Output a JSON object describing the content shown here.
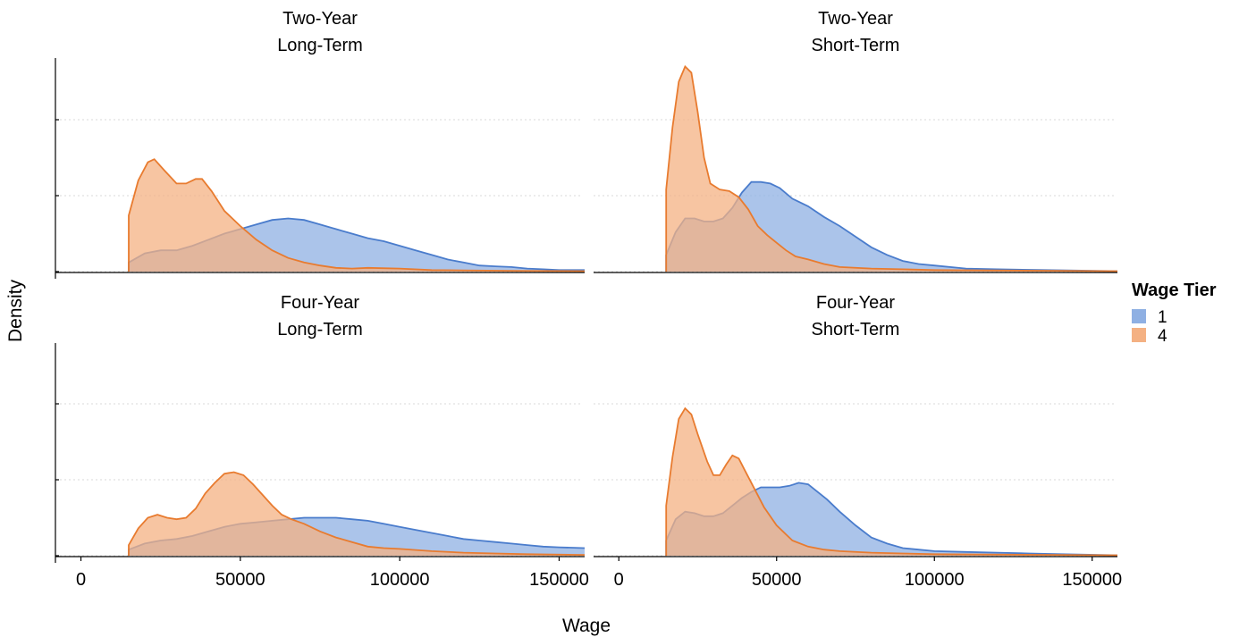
{
  "chart_data": {
    "type": "area",
    "subtype": "density",
    "xlabel": "Wage",
    "ylabel": "Density",
    "xlim": [
      -8000,
      158000
    ],
    "x_ticks": [
      0,
      50000,
      100000,
      150000
    ],
    "x_tick_labels": [
      "0",
      "50000",
      "100000",
      "150000"
    ],
    "y_tick_labels_shown": false,
    "y_gridlines": 3,
    "grid": "horizontal-dotted",
    "legend": {
      "title": "Wage Tier",
      "position": "right",
      "entries": [
        {
          "label": "1",
          "fill": "#8fb0e3",
          "stroke": "#4a7ccc"
        },
        {
          "label": "4",
          "fill": "#f4b183",
          "stroke": "#e87b2f"
        }
      ]
    },
    "panels": [
      {
        "title_line1": "Two-Year",
        "title_line2": "Long-Term",
        "ylim": [
          0,
          1.4
        ],
        "series": [
          {
            "name": "1",
            "points": [
              [
                15000,
                0.06
              ],
              [
                20000,
                0.12
              ],
              [
                25000,
                0.14
              ],
              [
                30000,
                0.14
              ],
              [
                35000,
                0.17
              ],
              [
                40000,
                0.21
              ],
              [
                45000,
                0.25
              ],
              [
                50000,
                0.28
              ],
              [
                55000,
                0.31
              ],
              [
                60000,
                0.34
              ],
              [
                65000,
                0.35
              ],
              [
                70000,
                0.34
              ],
              [
                75000,
                0.31
              ],
              [
                80000,
                0.28
              ],
              [
                85000,
                0.25
              ],
              [
                90000,
                0.22
              ],
              [
                95000,
                0.2
              ],
              [
                100000,
                0.17
              ],
              [
                105000,
                0.14
              ],
              [
                110000,
                0.11
              ],
              [
                115000,
                0.08
              ],
              [
                120000,
                0.06
              ],
              [
                125000,
                0.04
              ],
              [
                130000,
                0.035
              ],
              [
                135000,
                0.03
              ],
              [
                140000,
                0.02
              ],
              [
                145000,
                0.015
              ],
              [
                150000,
                0.01
              ],
              [
                158000,
                0.01
              ]
            ]
          },
          {
            "name": "4",
            "points": [
              [
                15000,
                0.37
              ],
              [
                18000,
                0.6
              ],
              [
                21000,
                0.72
              ],
              [
                23000,
                0.74
              ],
              [
                26000,
                0.67
              ],
              [
                30000,
                0.58
              ],
              [
                33000,
                0.58
              ],
              [
                36000,
                0.61
              ],
              [
                38000,
                0.61
              ],
              [
                41000,
                0.53
              ],
              [
                45000,
                0.4
              ],
              [
                50000,
                0.3
              ],
              [
                55000,
                0.21
              ],
              [
                60000,
                0.14
              ],
              [
                65000,
                0.09
              ],
              [
                70000,
                0.06
              ],
              [
                75000,
                0.04
              ],
              [
                80000,
                0.025
              ],
              [
                85000,
                0.02
              ],
              [
                90000,
                0.025
              ],
              [
                100000,
                0.02
              ],
              [
                110000,
                0.01
              ],
              [
                120000,
                0.008
              ],
              [
                135000,
                0.005
              ],
              [
                158000,
                0.003
              ]
            ]
          }
        ]
      },
      {
        "title_line1": "Two-Year",
        "title_line2": "Short-Term",
        "ylim": [
          0,
          1.4
        ],
        "series": [
          {
            "name": "1",
            "points": [
              [
                15000,
                0.11
              ],
              [
                18000,
                0.26
              ],
              [
                21000,
                0.35
              ],
              [
                24000,
                0.35
              ],
              [
                27000,
                0.33
              ],
              [
                30000,
                0.33
              ],
              [
                33000,
                0.35
              ],
              [
                36000,
                0.42
              ],
              [
                39000,
                0.52
              ],
              [
                42000,
                0.59
              ],
              [
                45000,
                0.59
              ],
              [
                48000,
                0.58
              ],
              [
                51000,
                0.55
              ],
              [
                55000,
                0.48
              ],
              [
                60000,
                0.43
              ],
              [
                65000,
                0.36
              ],
              [
                70000,
                0.3
              ],
              [
                75000,
                0.23
              ],
              [
                80000,
                0.16
              ],
              [
                85000,
                0.11
              ],
              [
                90000,
                0.07
              ],
              [
                95000,
                0.05
              ],
              [
                100000,
                0.04
              ],
              [
                110000,
                0.02
              ],
              [
                120000,
                0.015
              ],
              [
                135000,
                0.01
              ],
              [
                158000,
                0.003
              ]
            ]
          },
          {
            "name": "4",
            "points": [
              [
                15000,
                0.54
              ],
              [
                17000,
                0.95
              ],
              [
                19000,
                1.25
              ],
              [
                21000,
                1.35
              ],
              [
                23000,
                1.31
              ],
              [
                25000,
                1.05
              ],
              [
                27000,
                0.75
              ],
              [
                29000,
                0.58
              ],
              [
                32000,
                0.54
              ],
              [
                35000,
                0.53
              ],
              [
                38000,
                0.49
              ],
              [
                41000,
                0.41
              ],
              [
                44000,
                0.3
              ],
              [
                47000,
                0.24
              ],
              [
                50000,
                0.19
              ],
              [
                53000,
                0.14
              ],
              [
                56000,
                0.1
              ],
              [
                60000,
                0.08
              ],
              [
                65000,
                0.05
              ],
              [
                70000,
                0.03
              ],
              [
                80000,
                0.02
              ],
              [
                90000,
                0.015
              ],
              [
                100000,
                0.01
              ],
              [
                158000,
                0.003
              ]
            ]
          }
        ]
      },
      {
        "title_line1": "Four-Year",
        "title_line2": "Long-Term",
        "ylim": [
          0,
          1.4
        ],
        "series": [
          {
            "name": "1",
            "points": [
              [
                15000,
                0.04
              ],
              [
                20000,
                0.08
              ],
              [
                25000,
                0.1
              ],
              [
                30000,
                0.11
              ],
              [
                35000,
                0.13
              ],
              [
                40000,
                0.16
              ],
              [
                45000,
                0.19
              ],
              [
                50000,
                0.21
              ],
              [
                55000,
                0.22
              ],
              [
                60000,
                0.23
              ],
              [
                65000,
                0.24
              ],
              [
                70000,
                0.25
              ],
              [
                75000,
                0.25
              ],
              [
                80000,
                0.25
              ],
              [
                85000,
                0.24
              ],
              [
                90000,
                0.23
              ],
              [
                95000,
                0.21
              ],
              [
                100000,
                0.19
              ],
              [
                105000,
                0.17
              ],
              [
                110000,
                0.15
              ],
              [
                115000,
                0.13
              ],
              [
                120000,
                0.11
              ],
              [
                125000,
                0.1
              ],
              [
                130000,
                0.09
              ],
              [
                135000,
                0.08
              ],
              [
                140000,
                0.07
              ],
              [
                145000,
                0.06
              ],
              [
                150000,
                0.055
              ],
              [
                158000,
                0.05
              ]
            ]
          },
          {
            "name": "4",
            "points": [
              [
                15000,
                0.07
              ],
              [
                18000,
                0.18
              ],
              [
                21000,
                0.25
              ],
              [
                24000,
                0.27
              ],
              [
                27000,
                0.25
              ],
              [
                30000,
                0.24
              ],
              [
                33000,
                0.25
              ],
              [
                36000,
                0.31
              ],
              [
                39000,
                0.41
              ],
              [
                42000,
                0.48
              ],
              [
                45000,
                0.54
              ],
              [
                48000,
                0.55
              ],
              [
                51000,
                0.53
              ],
              [
                54000,
                0.47
              ],
              [
                57000,
                0.4
              ],
              [
                60000,
                0.33
              ],
              [
                63000,
                0.27
              ],
              [
                66000,
                0.24
              ],
              [
                70000,
                0.21
              ],
              [
                75000,
                0.16
              ],
              [
                80000,
                0.12
              ],
              [
                85000,
                0.09
              ],
              [
                90000,
                0.06
              ],
              [
                95000,
                0.05
              ],
              [
                100000,
                0.045
              ],
              [
                110000,
                0.03
              ],
              [
                120000,
                0.02
              ],
              [
                130000,
                0.015
              ],
              [
                140000,
                0.01
              ],
              [
                158000,
                0.005
              ]
            ]
          }
        ]
      },
      {
        "title_line1": "Four-Year",
        "title_line2": "Short-Term",
        "ylim": [
          0,
          1.4
        ],
        "series": [
          {
            "name": "1",
            "points": [
              [
                15000,
                0.1
              ],
              [
                18000,
                0.24
              ],
              [
                21000,
                0.29
              ],
              [
                24000,
                0.28
              ],
              [
                27000,
                0.26
              ],
              [
                30000,
                0.26
              ],
              [
                33000,
                0.28
              ],
              [
                36000,
                0.33
              ],
              [
                39000,
                0.38
              ],
              [
                42000,
                0.42
              ],
              [
                45000,
                0.45
              ],
              [
                48000,
                0.45
              ],
              [
                51000,
                0.45
              ],
              [
                54000,
                0.46
              ],
              [
                57000,
                0.48
              ],
              [
                60000,
                0.47
              ],
              [
                63000,
                0.42
              ],
              [
                66000,
                0.37
              ],
              [
                70000,
                0.29
              ],
              [
                75000,
                0.2
              ],
              [
                80000,
                0.12
              ],
              [
                85000,
                0.08
              ],
              [
                90000,
                0.05
              ],
              [
                95000,
                0.04
              ],
              [
                100000,
                0.03
              ],
              [
                110000,
                0.025
              ],
              [
                120000,
                0.02
              ],
              [
                130000,
                0.015
              ],
              [
                140000,
                0.01
              ],
              [
                158000,
                0.003
              ]
            ]
          },
          {
            "name": "4",
            "points": [
              [
                15000,
                0.33
              ],
              [
                17000,
                0.65
              ],
              [
                19000,
                0.9
              ],
              [
                21000,
                0.97
              ],
              [
                23000,
                0.93
              ],
              [
                25000,
                0.8
              ],
              [
                28000,
                0.62
              ],
              [
                30000,
                0.53
              ],
              [
                32000,
                0.53
              ],
              [
                34000,
                0.6
              ],
              [
                36000,
                0.66
              ],
              [
                38000,
                0.64
              ],
              [
                40000,
                0.56
              ],
              [
                43000,
                0.44
              ],
              [
                46000,
                0.32
              ],
              [
                50000,
                0.2
              ],
              [
                55000,
                0.1
              ],
              [
                60000,
                0.06
              ],
              [
                65000,
                0.04
              ],
              [
                70000,
                0.03
              ],
              [
                80000,
                0.02
              ],
              [
                90000,
                0.015
              ],
              [
                100000,
                0.01
              ],
              [
                158000,
                0.003
              ]
            ]
          }
        ]
      }
    ]
  }
}
